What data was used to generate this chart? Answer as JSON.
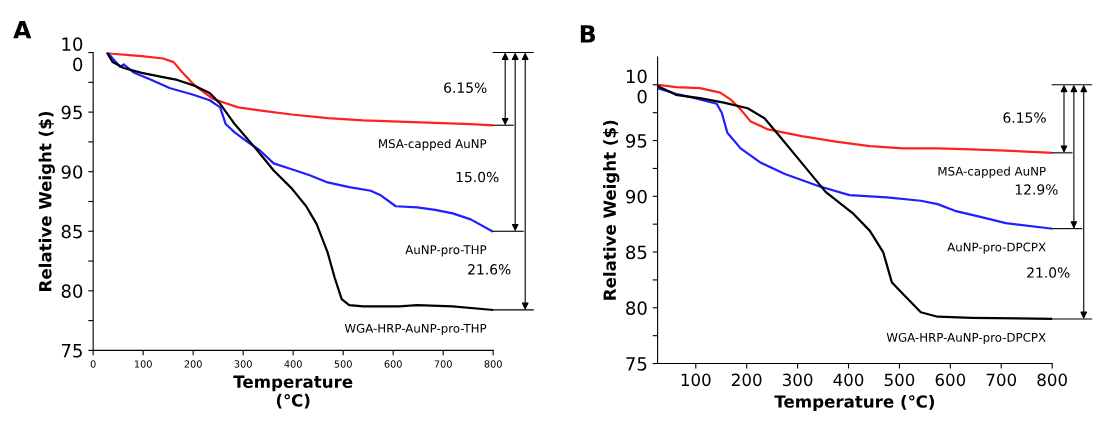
{
  "chart_data": [
    {
      "type": "line",
      "title": "A",
      "xlabel": "Temperature\n(℃)",
      "ylabel": "Relative Weight ($)",
      "xlim": [
        0,
        800
      ],
      "ylim": [
        75,
        100
      ],
      "xticks": [
        0,
        100,
        200,
        300,
        400,
        500,
        600,
        700,
        800
      ],
      "yticks": [
        {
          "value": 100,
          "label": "10\n0"
        },
        {
          "value": 97.5,
          "label": null
        },
        95,
        {
          "value": 92.5,
          "label": null
        },
        90,
        {
          "value": 87.5,
          "label": null
        },
        85,
        {
          "value": 82.5,
          "label": null
        },
        80,
        {
          "value": 77.5,
          "label": null
        },
        75
      ],
      "grid": false,
      "legend": false,
      "series": [
        {
          "name": "MSA-capped AuNP",
          "color": "#ff2020",
          "x": [
            29,
            39,
            97,
            140,
            161,
            175,
            204,
            240,
            290,
            340,
            397,
            469,
            540,
            612,
            684,
            755,
            798
          ],
          "values": [
            100,
            99.9,
            99.7,
            99.5,
            99.2,
            98.5,
            97.2,
            96.1,
            95.4,
            95.1,
            94.8,
            94.5,
            94.3,
            94.2,
            94.1,
            94.0,
            93.9
          ]
        },
        {
          "name": "AuNP-pro-THP",
          "color": "#1f1fff",
          "x": [
            29,
            39,
            54,
            61,
            82,
            111,
            154,
            197,
            233,
            254,
            265,
            283,
            312,
            333,
            361,
            397,
            433,
            469,
            512,
            555,
            576,
            605,
            648,
            684,
            719,
            755,
            798
          ],
          "values": [
            100,
            99.5,
            98.8,
            99.0,
            98.3,
            97.8,
            97.0,
            96.5,
            96.0,
            95.4,
            94.0,
            93.3,
            92.4,
            91.8,
            90.7,
            90.2,
            89.7,
            89.1,
            88.7,
            88.4,
            88.0,
            87.1,
            87.0,
            86.8,
            86.5,
            86.0,
            85.0
          ]
        },
        {
          "name": "WGA-HRP-AuNP-pro-THP",
          "color": "#000000",
          "x": [
            29,
            39,
            61,
            97,
            132,
            168,
            204,
            233,
            254,
            283,
            326,
            361,
            397,
            426,
            447,
            469,
            483,
            497,
            512,
            540,
            612,
            648,
            719,
            798
          ],
          "values": [
            99.9,
            99.2,
            98.7,
            98.3,
            98.0,
            97.7,
            97.2,
            96.6,
            95.7,
            94.0,
            91.9,
            90.1,
            88.6,
            87.1,
            85.6,
            83.2,
            81.1,
            79.3,
            78.8,
            78.7,
            78.7,
            78.8,
            78.7,
            78.4
          ]
        }
      ],
      "annotations": [
        "6.15%",
        "15.0%",
        "21.6%"
      ]
    },
    {
      "type": "line",
      "title": "B",
      "xlabel": "Temperature (℃)",
      "ylabel": "Relative Weight ($)",
      "xlim": [
        25,
        800
      ],
      "ylim": [
        75,
        102.5
      ],
      "xticks": [
        100,
        200,
        300,
        400,
        500,
        600,
        700,
        800
      ],
      "yticks": [
        {
          "value": 100,
          "label": "10\n0"
        },
        {
          "value": 97.5,
          "label": null
        },
        95,
        {
          "value": 92.5,
          "label": null
        },
        90,
        {
          "value": 87.5,
          "label": null
        },
        85,
        {
          "value": 82.5,
          "label": null
        },
        80,
        {
          "value": 77.5,
          "label": null
        },
        75
      ],
      "grid": false,
      "legend": false,
      "series": [
        {
          "name": "MSA-capped AuNP",
          "color": "#ff2020",
          "x": [
            25,
            61,
            108,
            148,
            168,
            188,
            208,
            242,
            308,
            375,
            442,
            508,
            575,
            642,
            709,
            799
          ],
          "values": [
            100,
            99.8,
            99.7,
            99.3,
            98.7,
            97.8,
            96.7,
            96.0,
            95.4,
            94.9,
            94.5,
            94.3,
            94.3,
            94.2,
            94.1,
            93.9
          ]
        },
        {
          "name": "AuNP-pro-DPCPX",
          "color": "#1f1fff",
          "x": [
            25,
            61,
            108,
            141,
            151,
            162,
            188,
            228,
            275,
            342,
            402,
            475,
            542,
            575,
            609,
            655,
            709,
            799
          ],
          "values": [
            99.7,
            99.2,
            98.7,
            98.3,
            97.5,
            95.7,
            94.3,
            93.0,
            92.0,
            90.9,
            90.1,
            89.9,
            89.6,
            89.3,
            88.7,
            88.2,
            87.6,
            87.1
          ]
        },
        {
          "name": "WGA-HRP-AuNP-pro-DPCPX",
          "color": "#000000",
          "x": [
            25,
            61,
            108,
            155,
            202,
            235,
            268,
            308,
            355,
            408,
            442,
            468,
            485,
            508,
            542,
            575,
            642,
            799
          ],
          "values": [
            99.9,
            99.1,
            98.8,
            98.4,
            97.9,
            97.0,
            95.2,
            93.0,
            90.4,
            88.5,
            86.9,
            85.0,
            82.3,
            81.2,
            79.6,
            79.2,
            79.1,
            79.0
          ]
        }
      ],
      "annotations": [
        "6.15%",
        "12.9%",
        "21.0%"
      ]
    }
  ]
}
